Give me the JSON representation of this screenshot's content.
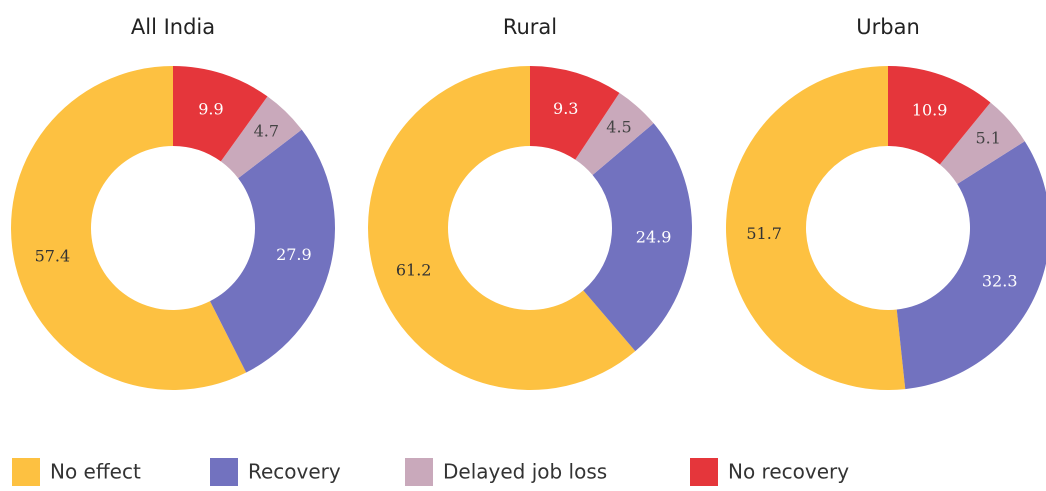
{
  "chart_data": {
    "type": "pie",
    "donut": true,
    "categories": [
      "No effect",
      "Recovery",
      "Delayed job loss",
      "No recovery"
    ],
    "colors": [
      "#FDC141",
      "#7272BF",
      "#C9A9BB",
      "#E5363B"
    ],
    "panels": [
      {
        "title": "All India",
        "values": [
          57.4,
          27.9,
          4.7,
          9.9
        ]
      },
      {
        "title": "Rural",
        "values": [
          61.2,
          24.9,
          4.5,
          9.3
        ]
      },
      {
        "title": "Urban",
        "values": [
          51.7,
          32.3,
          5.1,
          10.9
        ]
      }
    ]
  }
}
